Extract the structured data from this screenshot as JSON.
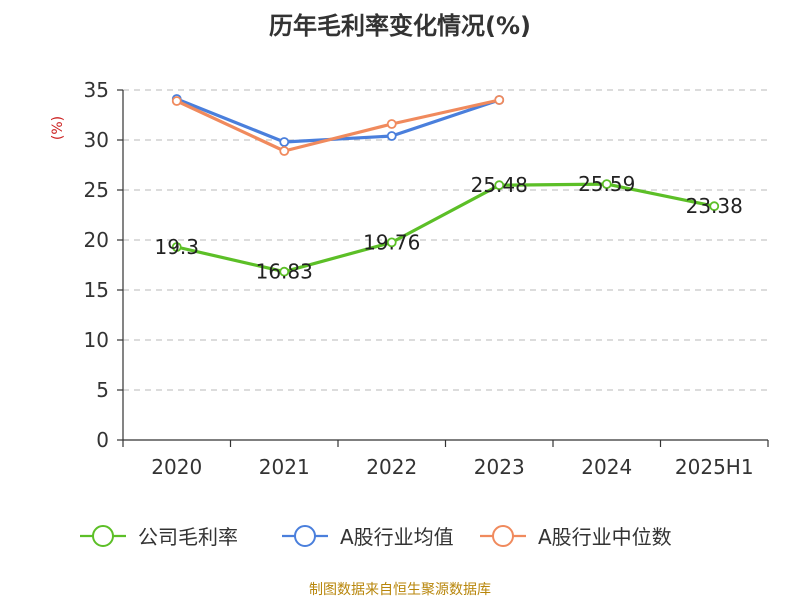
{
  "chart_data": {
    "type": "line",
    "title": "历年毛利率变化情况(%)",
    "ylabel": "(%)",
    "xlabel": "",
    "categories": [
      "2020",
      "2021",
      "2022",
      "2023",
      "2024",
      "2025H1"
    ],
    "ylim": [
      0,
      35
    ],
    "yticks": [
      0,
      5,
      10,
      15,
      20,
      25,
      30,
      35
    ],
    "grid": true,
    "legend_position": "bottom",
    "series": [
      {
        "name": "公司毛利率",
        "color": "#5cbf27",
        "values": [
          19.3,
          16.83,
          19.76,
          25.48,
          25.59,
          23.38
        ],
        "labels": [
          "19.3",
          "16.83",
          "19.76",
          "25.48",
          "25.59",
          "23.38"
        ]
      },
      {
        "name": "A股行业均值",
        "color": "#4a7fdc",
        "values": [
          34.1,
          29.8,
          30.4,
          34.0,
          null,
          null
        ]
      },
      {
        "name": "A股行业中位数",
        "color": "#f08a5d",
        "values": [
          33.9,
          28.9,
          31.6,
          34.0,
          null,
          null
        ]
      }
    ]
  },
  "source_note": "制图数据来自恒生聚源数据库",
  "colors": {
    "title": "#333333",
    "axis": "#333333",
    "grid": "#c8c8c8",
    "ylabel": "#cc2222",
    "source": "#b8860b"
  }
}
